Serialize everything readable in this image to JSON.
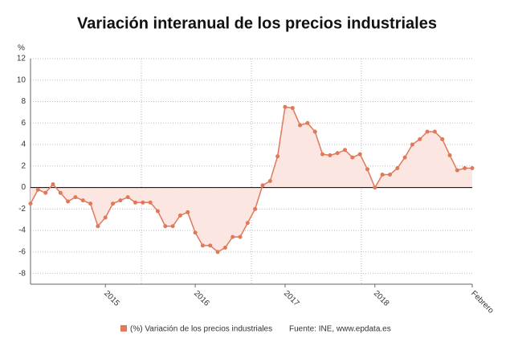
{
  "chart_data": {
    "type": "line",
    "title": "Variación interanual de los precios industriales",
    "y_label": "%",
    "source": "Fuente: INE, www.epdata.es",
    "categories": [
      null,
      null,
      null,
      null,
      null,
      null,
      null,
      null,
      null,
      null,
      "2015",
      null,
      null,
      null,
      null,
      null,
      null,
      null,
      null,
      null,
      null,
      null,
      "2016",
      null,
      null,
      null,
      null,
      null,
      null,
      null,
      null,
      null,
      null,
      null,
      "2017",
      null,
      null,
      null,
      null,
      null,
      null,
      null,
      null,
      null,
      null,
      null,
      "2018",
      null,
      null,
      null,
      null,
      null,
      null,
      null,
      null,
      null,
      null,
      null,
      null,
      "Febrero"
    ],
    "series": [
      {
        "name": "(%) Variación de los precios industriales",
        "color": "#e0785a",
        "values": [
          -1.5,
          -0.2,
          -0.5,
          0.3,
          -0.5,
          -1.3,
          -0.9,
          -1.2,
          -1.5,
          -3.6,
          -2.8,
          -1.5,
          -1.2,
          -0.9,
          -1.4,
          -1.4,
          -1.4,
          -2.2,
          -3.6,
          -3.6,
          -2.6,
          -2.3,
          -4.2,
          -5.4,
          -5.4,
          -6.0,
          -5.6,
          -4.6,
          -4.6,
          -3.3,
          -2.0,
          0.2,
          0.6,
          2.9,
          7.5,
          7.4,
          5.8,
          6.0,
          5.2,
          3.1,
          3.0,
          3.2,
          3.5,
          2.8,
          3.1,
          1.7,
          0.0,
          1.2,
          1.2,
          1.8,
          2.8,
          4.0,
          4.5,
          5.2,
          5.2,
          4.5,
          3.0,
          1.6,
          1.8,
          1.8
        ]
      }
    ],
    "ylim": [
      -9,
      12
    ],
    "yticks": [
      -8,
      -6,
      -4,
      -2,
      0,
      2,
      4,
      6,
      8,
      10,
      12
    ],
    "grid": true
  }
}
